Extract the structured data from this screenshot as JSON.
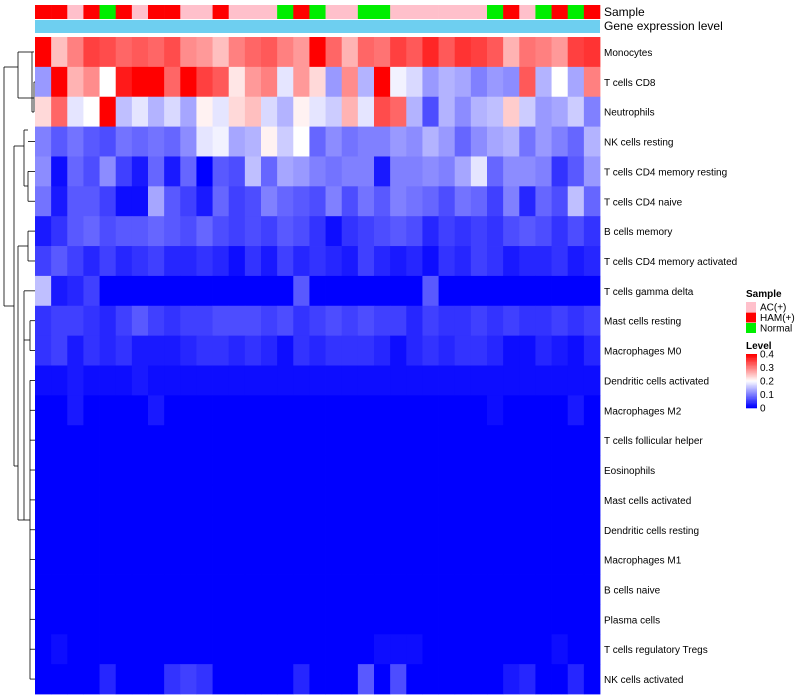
{
  "chart_data": {
    "type": "heatmap",
    "track_labels": {
      "sample": "Sample",
      "gene_expression": "Gene expression level"
    },
    "sample_groups": [
      "HAM(+)",
      "HAM(+)",
      "AC(+)",
      "HAM(+)",
      "Normal",
      "HAM(+)",
      "AC(+)",
      "HAM(+)",
      "HAM(+)",
      "AC(+)",
      "AC(+)",
      "HAM(+)",
      "AC(+)",
      "AC(+)",
      "AC(+)",
      "Normal",
      "HAM(+)",
      "Normal",
      "AC(+)",
      "AC(+)",
      "Normal",
      "Normal",
      "AC(+)",
      "AC(+)",
      "AC(+)",
      "AC(+)",
      "AC(+)",
      "AC(+)",
      "Normal",
      "HAM(+)",
      "AC(+)",
      "Normal",
      "HAM(+)",
      "Normal",
      "HAM(+)"
    ],
    "rows": [
      "Monocytes",
      "T cells CD8",
      "Neutrophils",
      "NK cells resting",
      "T cells CD4 memory resting",
      "T cells CD4 naive",
      "B cells memory",
      "T cells CD4 memory activated",
      "T cells gamma delta",
      "Mast cells resting",
      "Macrophages M0",
      "Dendritic cells activated",
      "Macrophages M2",
      "T cells follicular helper",
      "Eosinophils",
      "Mast cells activated",
      "Dendritic cells resting",
      "Macrophages M1",
      "B cells naive",
      "Plasma cells",
      "T cells regulatory  Tregs",
      "NK cells activated"
    ],
    "values": [
      [
        0.4,
        0.25,
        0.3,
        0.35,
        0.34,
        0.32,
        0.33,
        0.32,
        0.34,
        0.29,
        0.28,
        0.25,
        0.3,
        0.32,
        0.33,
        0.3,
        0.28,
        0.4,
        0.32,
        0.26,
        0.32,
        0.31,
        0.35,
        0.33,
        0.37,
        0.33,
        0.36,
        0.35,
        0.33,
        0.26,
        0.31,
        0.3,
        0.28,
        0.35,
        0.36
      ],
      [
        0.12,
        0.4,
        0.26,
        0.29,
        0.2,
        0.38,
        0.4,
        0.4,
        0.32,
        0.4,
        0.35,
        0.33,
        0.22,
        0.28,
        0.3,
        0.18,
        0.28,
        0.23,
        0.12,
        0.29,
        0.14,
        0.4,
        0.19,
        0.17,
        0.12,
        0.14,
        0.13,
        0.1,
        0.12,
        0.11,
        0.33,
        0.14,
        0.2,
        0.13,
        0.3
      ],
      [
        0.23,
        0.32,
        0.18,
        0.2,
        0.4,
        0.15,
        0.18,
        0.14,
        0.17,
        0.13,
        0.21,
        0.18,
        0.23,
        0.25,
        0.17,
        0.14,
        0.21,
        0.18,
        0.16,
        0.26,
        0.18,
        0.34,
        0.32,
        0.14,
        0.06,
        0.14,
        0.11,
        0.14,
        0.15,
        0.24,
        0.16,
        0.12,
        0.13,
        0.16,
        0.1
      ],
      [
        0.1,
        0.07,
        0.09,
        0.07,
        0.06,
        0.09,
        0.08,
        0.09,
        0.08,
        0.11,
        0.18,
        0.19,
        0.13,
        0.14,
        0.21,
        0.16,
        0.2,
        0.08,
        0.11,
        0.09,
        0.1,
        0.1,
        0.12,
        0.11,
        0.14,
        0.12,
        0.08,
        0.11,
        0.13,
        0.14,
        0.09,
        0.12,
        0.1,
        0.08,
        0.14
      ],
      [
        0.11,
        0.01,
        0.08,
        0.06,
        0.11,
        0.05,
        0.02,
        0.08,
        0.02,
        0.08,
        0.0,
        0.07,
        0.06,
        0.15,
        0.08,
        0.13,
        0.12,
        0.1,
        0.09,
        0.1,
        0.1,
        0.02,
        0.1,
        0.1,
        0.11,
        0.1,
        0.13,
        0.18,
        0.08,
        0.11,
        0.11,
        0.1,
        0.04,
        0.07,
        0.12
      ],
      [
        0.09,
        0.02,
        0.07,
        0.07,
        0.05,
        0.01,
        0.01,
        0.13,
        0.07,
        0.05,
        0.02,
        0.08,
        0.05,
        0.06,
        0.1,
        0.08,
        0.07,
        0.06,
        0.1,
        0.06,
        0.09,
        0.07,
        0.1,
        0.09,
        0.08,
        0.06,
        0.09,
        0.08,
        0.05,
        0.1,
        0.03,
        0.08,
        0.06,
        0.15,
        0.08
      ],
      [
        0.02,
        0.04,
        0.07,
        0.08,
        0.06,
        0.07,
        0.07,
        0.08,
        0.07,
        0.06,
        0.08,
        0.06,
        0.05,
        0.06,
        0.05,
        0.07,
        0.06,
        0.04,
        0.01,
        0.04,
        0.05,
        0.06,
        0.07,
        0.06,
        0.03,
        0.05,
        0.04,
        0.05,
        0.04,
        0.06,
        0.07,
        0.06,
        0.04,
        0.06,
        0.04
      ],
      [
        0.05,
        0.07,
        0.05,
        0.03,
        0.05,
        0.03,
        0.04,
        0.05,
        0.03,
        0.03,
        0.04,
        0.03,
        0.01,
        0.04,
        0.02,
        0.05,
        0.03,
        0.04,
        0.03,
        0.02,
        0.05,
        0.03,
        0.02,
        0.03,
        0.01,
        0.04,
        0.03,
        0.05,
        0.04,
        0.02,
        0.03,
        0.03,
        0.04,
        0.02,
        0.03
      ],
      [
        0.15,
        0.02,
        0.03,
        0.05,
        0.0,
        0.0,
        0.0,
        0.0,
        0.0,
        0.0,
        0.0,
        0.0,
        0.0,
        0.0,
        0.0,
        0.0,
        0.07,
        0.0,
        0.0,
        0.0,
        0.0,
        0.0,
        0.0,
        0.0,
        0.07,
        0.0,
        0.0,
        0.0,
        0.0,
        0.0,
        0.0,
        0.0,
        0.0,
        0.0,
        0.0
      ],
      [
        0.04,
        0.05,
        0.05,
        0.04,
        0.03,
        0.05,
        0.07,
        0.05,
        0.04,
        0.05,
        0.05,
        0.06,
        0.06,
        0.06,
        0.05,
        0.06,
        0.04,
        0.05,
        0.06,
        0.05,
        0.06,
        0.05,
        0.05,
        0.03,
        0.05,
        0.04,
        0.04,
        0.05,
        0.04,
        0.05,
        0.04,
        0.04,
        0.05,
        0.04,
        0.05
      ],
      [
        0.04,
        0.05,
        0.02,
        0.04,
        0.03,
        0.04,
        0.02,
        0.02,
        0.02,
        0.03,
        0.04,
        0.04,
        0.03,
        0.04,
        0.03,
        0.01,
        0.04,
        0.03,
        0.04,
        0.04,
        0.04,
        0.03,
        0.01,
        0.03,
        0.04,
        0.03,
        0.04,
        0.04,
        0.03,
        0.01,
        0.01,
        0.03,
        0.02,
        0.01,
        0.03
      ],
      [
        0.01,
        0.01,
        0.02,
        0.01,
        0.01,
        0.01,
        0.02,
        0.01,
        0.01,
        0.01,
        0.01,
        0.01,
        0.01,
        0.01,
        0.01,
        0.01,
        0.01,
        0.01,
        0.01,
        0.01,
        0.01,
        0.01,
        0.01,
        0.01,
        0.01,
        0.01,
        0.01,
        0.01,
        0.01,
        0.01,
        0.01,
        0.01,
        0.01,
        0.01,
        0.01
      ],
      [
        0.0,
        0.0,
        0.02,
        0.0,
        0.0,
        0.0,
        0.0,
        0.02,
        0.0,
        0.0,
        0.0,
        0.0,
        0.0,
        0.0,
        0.0,
        0.0,
        0.0,
        0.0,
        0.0,
        0.0,
        0.0,
        0.0,
        0.0,
        0.0,
        0.0,
        0.0,
        0.0,
        0.0,
        0.01,
        0.0,
        0.0,
        0.0,
        0.0,
        0.02,
        0.0
      ],
      [
        0.0,
        0.0,
        0.0,
        0.0,
        0.0,
        0.0,
        0.0,
        0.0,
        0.0,
        0.0,
        0.0,
        0.0,
        0.0,
        0.0,
        0.0,
        0.0,
        0.0,
        0.0,
        0.0,
        0.0,
        0.0,
        0.0,
        0.0,
        0.0,
        0.0,
        0.0,
        0.0,
        0.0,
        0.0,
        0.0,
        0.0,
        0.0,
        0.0,
        0.0,
        0.0
      ],
      [
        0.0,
        0.0,
        0.0,
        0.0,
        0.0,
        0.0,
        0.0,
        0.0,
        0.0,
        0.0,
        0.0,
        0.0,
        0.0,
        0.0,
        0.0,
        0.0,
        0.0,
        0.0,
        0.0,
        0.0,
        0.0,
        0.0,
        0.0,
        0.0,
        0.0,
        0.0,
        0.0,
        0.0,
        0.0,
        0.0,
        0.0,
        0.0,
        0.0,
        0.0,
        0.0
      ],
      [
        0.0,
        0.0,
        0.0,
        0.0,
        0.0,
        0.0,
        0.0,
        0.0,
        0.0,
        0.0,
        0.0,
        0.0,
        0.0,
        0.0,
        0.0,
        0.0,
        0.0,
        0.0,
        0.0,
        0.0,
        0.0,
        0.0,
        0.0,
        0.0,
        0.0,
        0.0,
        0.0,
        0.0,
        0.0,
        0.0,
        0.0,
        0.0,
        0.0,
        0.0,
        0.0
      ],
      [
        0.0,
        0.0,
        0.0,
        0.0,
        0.0,
        0.0,
        0.0,
        0.0,
        0.0,
        0.0,
        0.0,
        0.0,
        0.0,
        0.0,
        0.0,
        0.0,
        0.0,
        0.0,
        0.0,
        0.0,
        0.0,
        0.0,
        0.0,
        0.0,
        0.0,
        0.0,
        0.0,
        0.0,
        0.0,
        0.0,
        0.0,
        0.0,
        0.0,
        0.0,
        0.0
      ],
      [
        0.0,
        0.0,
        0.0,
        0.0,
        0.0,
        0.0,
        0.0,
        0.0,
        0.0,
        0.0,
        0.0,
        0.0,
        0.0,
        0.0,
        0.0,
        0.0,
        0.0,
        0.0,
        0.0,
        0.0,
        0.0,
        0.0,
        0.0,
        0.0,
        0.0,
        0.0,
        0.0,
        0.0,
        0.0,
        0.0,
        0.0,
        0.0,
        0.0,
        0.0,
        0.0
      ],
      [
        0.0,
        0.0,
        0.0,
        0.0,
        0.0,
        0.0,
        0.0,
        0.0,
        0.0,
        0.0,
        0.0,
        0.0,
        0.0,
        0.0,
        0.0,
        0.0,
        0.0,
        0.0,
        0.0,
        0.0,
        0.0,
        0.0,
        0.0,
        0.0,
        0.0,
        0.0,
        0.0,
        0.0,
        0.0,
        0.0,
        0.0,
        0.0,
        0.0,
        0.0,
        0.0
      ],
      [
        0.0,
        0.0,
        0.0,
        0.0,
        0.0,
        0.0,
        0.0,
        0.0,
        0.0,
        0.0,
        0.0,
        0.0,
        0.0,
        0.0,
        0.0,
        0.0,
        0.0,
        0.0,
        0.0,
        0.0,
        0.0,
        0.0,
        0.0,
        0.0,
        0.0,
        0.0,
        0.0,
        0.0,
        0.0,
        0.0,
        0.0,
        0.0,
        0.0,
        0.0,
        0.0
      ],
      [
        0.0,
        0.01,
        0.0,
        0.0,
        0.0,
        0.0,
        0.0,
        0.0,
        0.0,
        0.0,
        0.0,
        0.0,
        0.0,
        0.0,
        0.0,
        0.0,
        0.0,
        0.0,
        0.0,
        0.0,
        0.0,
        0.01,
        0.01,
        0.01,
        0.0,
        0.0,
        0.0,
        0.0,
        0.0,
        0.0,
        0.0,
        0.0,
        0.01,
        0.0,
        0.0
      ],
      [
        0.0,
        0.0,
        0.0,
        0.0,
        0.03,
        0.0,
        0.0,
        0.0,
        0.04,
        0.05,
        0.04,
        0.0,
        0.0,
        0.0,
        0.0,
        0.0,
        0.03,
        0.0,
        0.0,
        0.0,
        0.07,
        0.0,
        0.06,
        0.0,
        0.0,
        0.0,
        0.0,
        0.0,
        0.0,
        0.02,
        0.03,
        0.0,
        0.0,
        0.03,
        0.0
      ]
    ],
    "color_scale": {
      "min": 0,
      "mid": 0.2,
      "max": 0.4,
      "low": "#0000ff",
      "midc": "#ffffff",
      "high": "#ff0000"
    },
    "group_colors": {
      "AC(+)": "#ffc0cb",
      "HAM(+)": "#ff0000",
      "Normal": "#00ee00"
    },
    "expression_track_color": "#6ecff0",
    "legend": {
      "sample_title": "Sample",
      "sample_entries": [
        "AC(+)",
        "HAM(+)",
        "Normal"
      ],
      "level_title": "Level",
      "level_ticks": [
        "0.4",
        "0.3",
        "0.2",
        "0.1",
        "0"
      ],
      "level_tick_values": [
        0.4,
        0.3,
        0.2,
        0.1,
        0
      ],
      "placement": "right"
    }
  }
}
